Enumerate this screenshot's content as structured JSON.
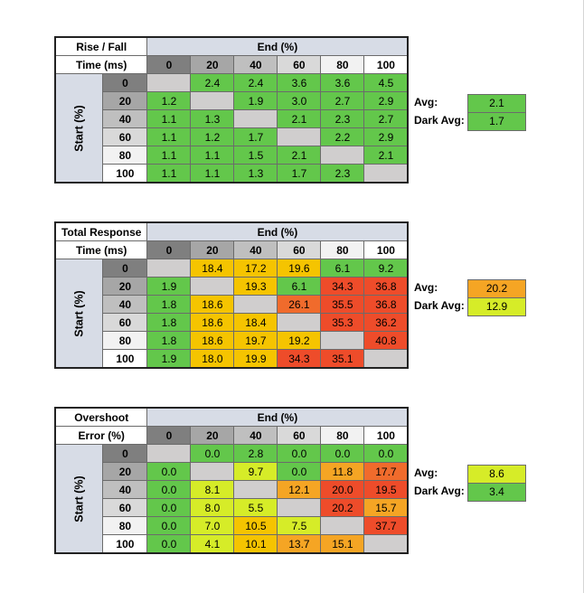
{
  "palette": {
    "shade0": "#7f7f7f",
    "shade20": "#a6a6a6",
    "shade40": "#bfbfbf",
    "shade60": "#d9d9d9",
    "shade80": "#f2f2f2",
    "shade100": "#ffffff",
    "empty": "#d0cece",
    "green": "#63c74b",
    "lime": "#d6ec28",
    "amber": "#f5c400",
    "orange": "#f5a524",
    "dark_orange": "#f06b2c",
    "red": "#ee4c2a"
  },
  "chart_data": [
    {
      "type": "table",
      "title_line1": "Rise / Fall",
      "title_line2": "Time (ms)",
      "col_header": "End (%)",
      "row_header": "Start (%)",
      "columns": [
        "0",
        "20",
        "40",
        "60",
        "80",
        "100"
      ],
      "rows": [
        "0",
        "20",
        "40",
        "60",
        "80",
        "100"
      ],
      "values": [
        [
          "",
          "2.4",
          "2.4",
          "3.6",
          "3.6",
          "4.5"
        ],
        [
          "1.2",
          "",
          "1.9",
          "3.0",
          "2.7",
          "2.9"
        ],
        [
          "1.1",
          "1.3",
          "",
          "2.1",
          "2.3",
          "2.7"
        ],
        [
          "1.1",
          "1.2",
          "1.7",
          "",
          "2.2",
          "2.9"
        ],
        [
          "1.1",
          "1.1",
          "1.5",
          "2.1",
          "",
          "2.1"
        ],
        [
          "1.1",
          "1.1",
          "1.3",
          "1.7",
          "2.3",
          ""
        ]
      ],
      "colors": [
        [
          "empty",
          "green",
          "green",
          "green",
          "green",
          "green"
        ],
        [
          "green",
          "empty",
          "green",
          "green",
          "green",
          "green"
        ],
        [
          "green",
          "green",
          "empty",
          "green",
          "green",
          "green"
        ],
        [
          "green",
          "green",
          "green",
          "empty",
          "green",
          "green"
        ],
        [
          "green",
          "green",
          "green",
          "green",
          "empty",
          "green"
        ],
        [
          "green",
          "green",
          "green",
          "green",
          "green",
          "empty"
        ]
      ],
      "avg_label": "Avg:",
      "avg_value": "2.1",
      "avg_color": "green",
      "dark_avg_label": "Dark Avg:",
      "dark_avg_value": "1.7",
      "dark_avg_color": "green"
    },
    {
      "type": "table",
      "title_line1": "Total Response",
      "title_line2": "Time (ms)",
      "col_header": "End (%)",
      "row_header": "Start (%)",
      "columns": [
        "0",
        "20",
        "40",
        "60",
        "80",
        "100"
      ],
      "rows": [
        "0",
        "20",
        "40",
        "60",
        "80",
        "100"
      ],
      "values": [
        [
          "",
          "18.4",
          "17.2",
          "19.6",
          "6.1",
          "9.2"
        ],
        [
          "1.9",
          "",
          "19.3",
          "6.1",
          "34.3",
          "36.8"
        ],
        [
          "1.8",
          "18.6",
          "",
          "26.1",
          "35.5",
          "36.8"
        ],
        [
          "1.8",
          "18.6",
          "18.4",
          "",
          "35.3",
          "36.2"
        ],
        [
          "1.8",
          "18.6",
          "19.7",
          "19.2",
          "",
          "40.8"
        ],
        [
          "1.9",
          "18.0",
          "19.9",
          "34.3",
          "35.1",
          ""
        ]
      ],
      "colors": [
        [
          "empty",
          "amber",
          "amber",
          "amber",
          "green",
          "green"
        ],
        [
          "green",
          "empty",
          "amber",
          "green",
          "red",
          "red"
        ],
        [
          "green",
          "amber",
          "empty",
          "dark_orange",
          "red",
          "red"
        ],
        [
          "green",
          "amber",
          "amber",
          "empty",
          "red",
          "red"
        ],
        [
          "green",
          "amber",
          "amber",
          "amber",
          "empty",
          "red"
        ],
        [
          "green",
          "amber",
          "amber",
          "red",
          "red",
          "empty"
        ]
      ],
      "avg_label": "Avg:",
      "avg_value": "20.2",
      "avg_color": "orange",
      "dark_avg_label": "Dark Avg:",
      "dark_avg_value": "12.9",
      "dark_avg_color": "lime"
    },
    {
      "type": "table",
      "title_line1": "Overshoot",
      "title_line2": "Error (%)",
      "col_header": "End (%)",
      "row_header": "Start (%)",
      "columns": [
        "0",
        "20",
        "40",
        "60",
        "80",
        "100"
      ],
      "rows": [
        "0",
        "20",
        "40",
        "60",
        "80",
        "100"
      ],
      "values": [
        [
          "",
          "0.0",
          "2.8",
          "0.0",
          "0.0",
          "0.0"
        ],
        [
          "0.0",
          "",
          "9.7",
          "0.0",
          "11.8",
          "17.7"
        ],
        [
          "0.0",
          "8.1",
          "",
          "12.1",
          "20.0",
          "19.5"
        ],
        [
          "0.0",
          "8.0",
          "5.5",
          "",
          "20.2",
          "15.7"
        ],
        [
          "0.0",
          "7.0",
          "10.5",
          "7.5",
          "",
          "37.7"
        ],
        [
          "0.0",
          "4.1",
          "10.1",
          "13.7",
          "15.1",
          ""
        ]
      ],
      "colors": [
        [
          "empty",
          "green",
          "green",
          "green",
          "green",
          "green"
        ],
        [
          "green",
          "empty",
          "lime",
          "green",
          "orange",
          "dark_orange"
        ],
        [
          "green",
          "lime",
          "empty",
          "orange",
          "red",
          "red"
        ],
        [
          "green",
          "lime",
          "lime",
          "empty",
          "red",
          "orange"
        ],
        [
          "green",
          "lime",
          "amber",
          "lime",
          "empty",
          "red"
        ],
        [
          "green",
          "lime",
          "amber",
          "orange",
          "orange",
          "empty"
        ]
      ],
      "avg_label": "Avg:",
      "avg_value": "8.6",
      "avg_color": "lime",
      "dark_avg_label": "Dark Avg:",
      "dark_avg_value": "3.4",
      "dark_avg_color": "green"
    }
  ]
}
